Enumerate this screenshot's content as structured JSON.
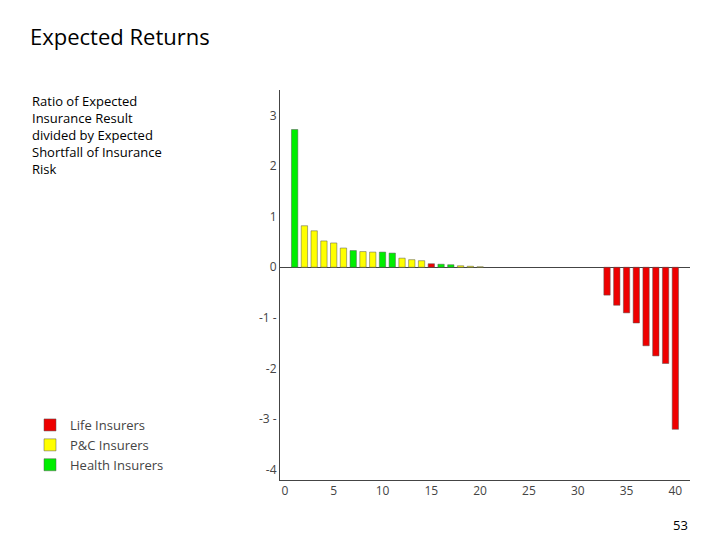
{
  "chart_data": {
    "type": "bar",
    "title": "Expected Returns",
    "subtitle": "Ratio of Expected\nInsurance Result\ndivided by Expected\nShortfall of Insurance\nRisk",
    "annotations": [
      "53"
    ],
    "x": [
      1,
      2,
      3,
      4,
      5,
      6,
      7,
      8,
      9,
      10,
      11,
      12,
      13,
      14,
      15,
      16,
      17,
      18,
      19,
      20,
      33,
      34,
      35,
      36,
      37,
      38,
      39,
      40
    ],
    "series": [
      {
        "name": "Life Insurers",
        "color": "#ee0000",
        "values": [
          null,
          null,
          null,
          null,
          null,
          null,
          null,
          null,
          null,
          null,
          null,
          null,
          null,
          null,
          0.07,
          null,
          null,
          null,
          null,
          null,
          -0.55,
          -0.75,
          -0.9,
          -1.1,
          -1.55,
          -1.75,
          -1.9,
          -3.2
        ]
      },
      {
        "name": "P&C Insurers",
        "color": "#ffff00",
        "values": [
          null,
          0.82,
          0.72,
          0.52,
          0.48,
          0.38,
          null,
          0.31,
          0.3,
          null,
          null,
          0.18,
          0.15,
          0.13,
          null,
          null,
          null,
          0.03,
          0.02,
          0.01,
          null,
          null,
          null,
          null,
          null,
          null,
          null,
          null
        ]
      },
      {
        "name": "Health Insurers",
        "color": "#00ee00",
        "values": [
          2.72,
          null,
          null,
          null,
          null,
          null,
          0.33,
          null,
          null,
          0.3,
          0.28,
          null,
          null,
          null,
          null,
          0.06,
          0.05,
          null,
          null,
          null,
          null,
          null,
          null,
          null,
          null,
          null,
          null,
          null
        ]
      }
    ],
    "xlim": [
      -0.5,
      41.5
    ],
    "xticks": [
      0,
      5,
      10,
      15,
      20,
      25,
      30,
      35,
      40
    ],
    "ylim": [
      -4.2,
      3.5
    ],
    "yticks": [
      -4,
      {
        "value": -3,
        "label": "-3 -"
      },
      -2,
      {
        "value": -1,
        "label": "-1 -"
      },
      0,
      1,
      2,
      3
    ],
    "grid": false,
    "legend": "lower left"
  }
}
